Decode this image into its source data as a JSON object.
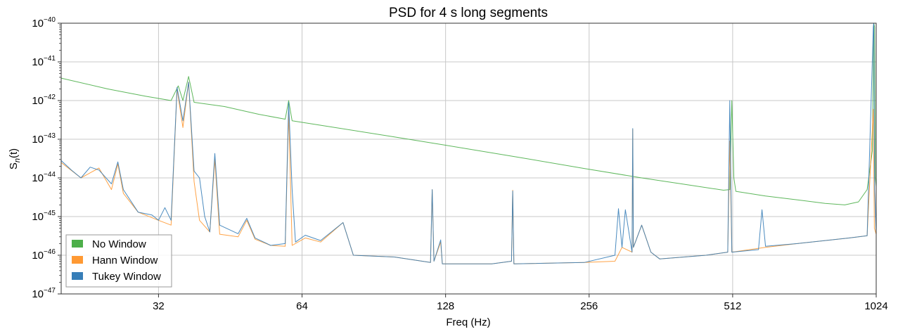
{
  "chart_data": {
    "type": "line",
    "title": "PSD for 4 s long segments",
    "xlabel": "Freq (Hz)",
    "ylabel_main": "S",
    "ylabel_sub": "n",
    "ylabel_tail": "(t)",
    "x_scale": "log2",
    "y_scale": "log10",
    "xlim": [
      20,
      1024
    ],
    "ylim_exponents": [
      -47,
      -40
    ],
    "xticks": [
      32,
      64,
      128,
      256,
      512,
      1024
    ],
    "xtick_labels": [
      "32",
      "64",
      "128",
      "256",
      "512",
      "1024"
    ],
    "yticks": [
      {
        "base": "10",
        "exp": "−40"
      },
      {
        "base": "10",
        "exp": "−41"
      },
      {
        "base": "10",
        "exp": "−42"
      },
      {
        "base": "10",
        "exp": "−43"
      },
      {
        "base": "10",
        "exp": "−44"
      },
      {
        "base": "10",
        "exp": "−45"
      },
      {
        "base": "10",
        "exp": "−46"
      },
      {
        "base": "10",
        "exp": "−47"
      }
    ],
    "ytick_exponents": [
      -40,
      -41,
      -42,
      -43,
      -44,
      -45,
      -46,
      -47
    ],
    "grid": true,
    "legend_position": "lower-left",
    "series": [
      {
        "name": "No Window",
        "color": "#4daf4a",
        "points": [
          [
            20,
            3.8e-42
          ],
          [
            25,
            2e-42
          ],
          [
            30,
            1.3e-42
          ],
          [
            34,
            1e-42
          ],
          [
            35.2,
            2.4e-42
          ],
          [
            36,
            1e-42
          ],
          [
            37,
            4.2e-42
          ],
          [
            38,
            9e-43
          ],
          [
            44,
            7e-43
          ],
          [
            52,
            4.4e-43
          ],
          [
            59,
            3.3e-43
          ],
          [
            60,
            1e-42
          ],
          [
            61,
            3e-43
          ],
          [
            70,
            2.3e-43
          ],
          [
            100,
            1.15e-43
          ],
          [
            128,
            7e-44
          ],
          [
            180,
            3.5e-44
          ],
          [
            250,
            1.75e-44
          ],
          [
            330,
            1e-44
          ],
          [
            400,
            7e-45
          ],
          [
            490,
            4.8e-45
          ],
          [
            505,
            5e-45
          ],
          [
            510,
            1e-42
          ],
          [
            515,
            1e-44
          ],
          [
            520,
            4.5e-45
          ],
          [
            600,
            3.4e-45
          ],
          [
            700,
            2.7e-45
          ],
          [
            800,
            2.2e-45
          ],
          [
            880,
            2e-45
          ],
          [
            940,
            2.4e-45
          ],
          [
            980,
            5e-45
          ],
          [
            1005,
            5e-44
          ],
          [
            1012,
            1e-40
          ],
          [
            1016,
            8e-41
          ],
          [
            1020,
            1e-44
          ],
          [
            1024,
            6e-45
          ]
        ]
      },
      {
        "name": "Hann Window",
        "color": "#ff9933",
        "points": [
          [
            20,
            2.5e-44
          ],
          [
            22,
            1e-44
          ],
          [
            24,
            1.8e-44
          ],
          [
            25.5,
            5e-45
          ],
          [
            26.3,
            2.3e-44
          ],
          [
            27,
            4e-45
          ],
          [
            29,
            1.3e-45
          ],
          [
            32,
            8e-46
          ],
          [
            34,
            6e-46
          ],
          [
            35,
            2e-42
          ],
          [
            36,
            2e-43
          ],
          [
            37,
            3e-42
          ],
          [
            38,
            8e-45
          ],
          [
            39,
            8e-46
          ],
          [
            41,
            4e-46
          ],
          [
            42,
            3e-44
          ],
          [
            43,
            3.5e-46
          ],
          [
            47,
            3e-46
          ],
          [
            49,
            8e-46
          ],
          [
            51,
            2.6e-46
          ],
          [
            55,
            1.8e-46
          ],
          [
            59,
            1.7e-46
          ],
          [
            60,
            5e-43
          ],
          [
            61,
            1.8e-46
          ],
          [
            65,
            2.8e-46
          ],
          [
            70,
            2.2e-46
          ],
          [
            78,
            7e-46
          ],
          [
            82,
            1e-46
          ],
          [
            100,
            9e-47
          ],
          [
            119,
            6.5e-47
          ],
          [
            120,
            5e-45
          ],
          [
            121,
            7e-47
          ],
          [
            125,
            2.2e-46
          ],
          [
            126,
            6e-47
          ],
          [
            160,
            6e-47
          ],
          [
            176,
            7e-47
          ],
          [
            177,
            4.8e-45
          ],
          [
            178,
            6e-47
          ],
          [
            250,
            6.5e-47
          ],
          [
            290,
            7e-47
          ],
          [
            300,
            1.6e-46
          ],
          [
            315,
            1.2e-46
          ],
          [
            316,
            1.8e-43
          ],
          [
            317,
            1.6e-46
          ],
          [
            330,
            6e-46
          ],
          [
            345,
            1.2e-46
          ],
          [
            360,
            8e-47
          ],
          [
            450,
            1e-46
          ],
          [
            500,
            1.2e-46
          ],
          [
            505,
            9e-44
          ],
          [
            510,
            1.2e-46
          ],
          [
            600,
            1.6e-46
          ],
          [
            700,
            2e-46
          ],
          [
            800,
            2.4e-46
          ],
          [
            900,
            2.8e-46
          ],
          [
            980,
            3.2e-46
          ],
          [
            1010,
            6e-43
          ],
          [
            1015,
            5e-46
          ],
          [
            1024,
            3.5e-46
          ]
        ]
      },
      {
        "name": "Tukey Window",
        "color": "#377eb8",
        "points": [
          [
            20,
            2.8e-44
          ],
          [
            21,
            1.6e-44
          ],
          [
            22,
            1e-44
          ],
          [
            23,
            1.9e-44
          ],
          [
            24,
            1.6e-44
          ],
          [
            25.5,
            7e-45
          ],
          [
            26.3,
            2.6e-44
          ],
          [
            27,
            5e-45
          ],
          [
            29,
            1.3e-45
          ],
          [
            31,
            1.1e-45
          ],
          [
            32,
            8e-46
          ],
          [
            33,
            1.7e-45
          ],
          [
            34,
            8e-46
          ],
          [
            35,
            2.2e-42
          ],
          [
            36,
            3e-43
          ],
          [
            37,
            3e-42
          ],
          [
            38,
            1.5e-44
          ],
          [
            39,
            1e-44
          ],
          [
            40,
            1e-45
          ],
          [
            41,
            4e-46
          ],
          [
            42,
            4.3e-44
          ],
          [
            43,
            6e-46
          ],
          [
            47,
            3.6e-46
          ],
          [
            49,
            9e-46
          ],
          [
            51,
            2.8e-46
          ],
          [
            55,
            1.8e-46
          ],
          [
            59,
            2e-46
          ],
          [
            60,
            9e-43
          ],
          [
            61,
            5e-45
          ],
          [
            62,
            2.2e-46
          ],
          [
            65,
            3.3e-46
          ],
          [
            70,
            2.4e-46
          ],
          [
            78,
            7e-46
          ],
          [
            82,
            1e-46
          ],
          [
            100,
            9e-47
          ],
          [
            119,
            6.5e-47
          ],
          [
            120,
            5e-45
          ],
          [
            121,
            7e-47
          ],
          [
            125,
            2.5e-46
          ],
          [
            126,
            6e-47
          ],
          [
            160,
            6e-47
          ],
          [
            176,
            7e-47
          ],
          [
            177,
            4.6e-45
          ],
          [
            178,
            6e-47
          ],
          [
            250,
            6.5e-47
          ],
          [
            290,
            1e-46
          ],
          [
            295,
            1.6e-45
          ],
          [
            300,
            1.6e-46
          ],
          [
            305,
            1.5e-45
          ],
          [
            315,
            1.2e-46
          ],
          [
            316,
            1.9e-43
          ],
          [
            317,
            1.6e-46
          ],
          [
            330,
            6e-46
          ],
          [
            345,
            1.2e-46
          ],
          [
            360,
            8e-47
          ],
          [
            450,
            1e-46
          ],
          [
            500,
            1.2e-46
          ],
          [
            505,
            1e-42
          ],
          [
            510,
            1.2e-46
          ],
          [
            580,
            1.4e-46
          ],
          [
            590,
            1.5e-45
          ],
          [
            600,
            1.7e-46
          ],
          [
            700,
            2e-46
          ],
          [
            800,
            2.4e-46
          ],
          [
            900,
            2.8e-46
          ],
          [
            980,
            3.2e-46
          ],
          [
            1010,
            8e-41
          ],
          [
            1012,
            1e-40
          ],
          [
            1016,
            5e-45
          ],
          [
            1024,
            3.6e-46
          ]
        ]
      }
    ]
  }
}
